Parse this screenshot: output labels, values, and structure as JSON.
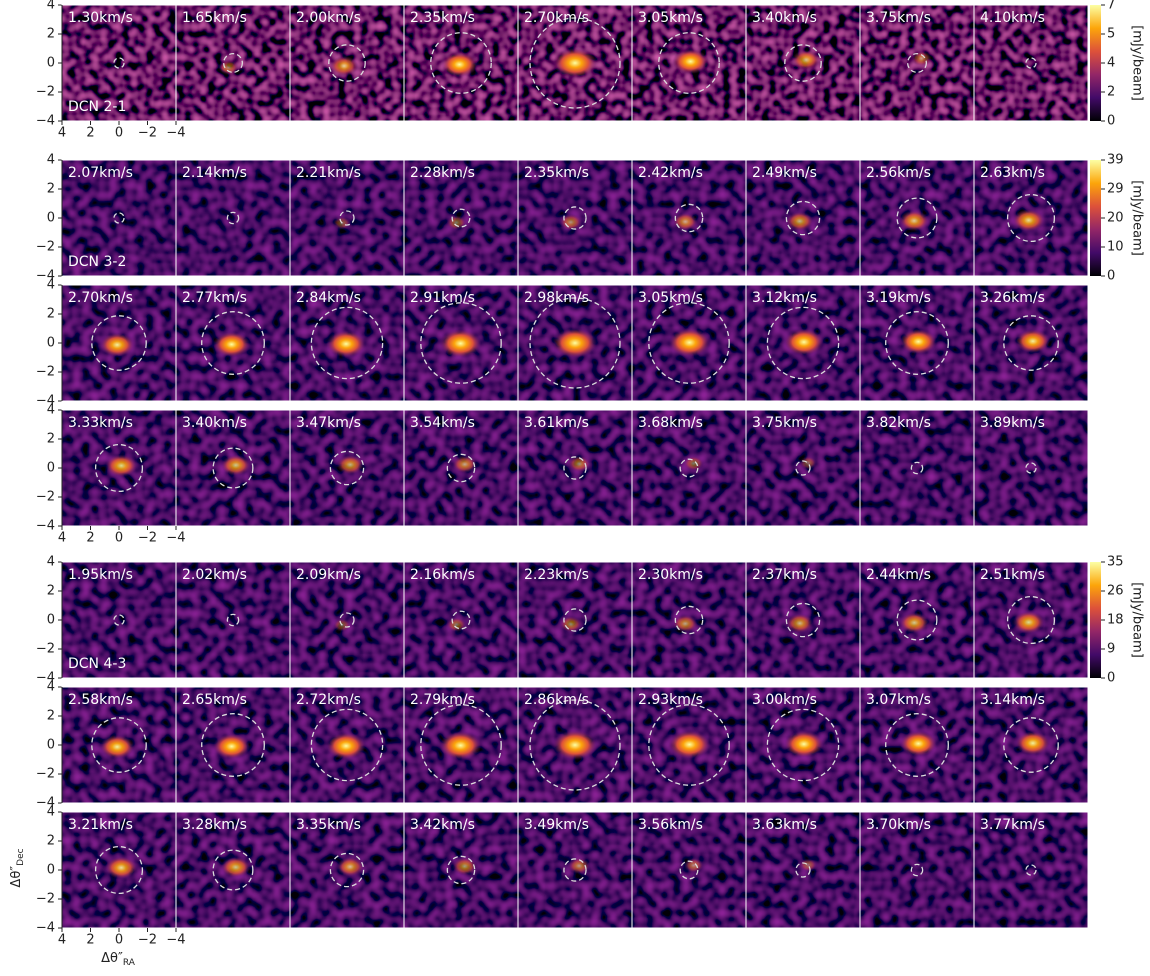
{
  "x_ticks": [
    {
      "value": 4,
      "label": "4"
    },
    {
      "value": 2,
      "label": "2"
    },
    {
      "value": 0,
      "label": "0"
    },
    {
      "value": -2,
      "label": "−2"
    },
    {
      "value": -4,
      "label": "−4"
    }
  ],
  "y_ticks": [
    {
      "value": -4,
      "label": "−4"
    },
    {
      "value": -2,
      "label": "−2"
    },
    {
      "value": 0,
      "label": "0"
    },
    {
      "value": 2,
      "label": "2"
    },
    {
      "value": 4,
      "label": "4"
    }
  ],
  "x_label": {
    "symbol": "Δθ″",
    "subscript": "RA"
  },
  "y_label": {
    "symbol": "Δθ″",
    "subscript": "Dec"
  },
  "groups": [
    {
      "line": "DCN 2-1",
      "colorbar": {
        "label": "[mJy/beam]",
        "lim": [
          0,
          7
        ],
        "ticks": [
          0,
          {
            "value": 1.75,
            "label": "2"
          },
          {
            "value": 3.5,
            "label": "4"
          },
          {
            "value": 5.25,
            "label": "5"
          },
          7
        ]
      },
      "rows": [
        [
          "1.30km/s",
          "1.65km/s",
          "2.00km/s",
          "2.35km/s",
          "2.70km/s",
          "3.05km/s",
          "3.40km/s",
          "3.75km/s",
          "4.10km/s"
        ]
      ]
    },
    {
      "line": "DCN 3-2",
      "colorbar": {
        "label": "[mJy/beam]",
        "lim": [
          0,
          39
        ],
        "ticks": [
          0,
          {
            "value": 9.75,
            "label": "10"
          },
          {
            "value": 19.5,
            "label": "20"
          },
          {
            "value": 29.25,
            "label": "29"
          },
          39
        ]
      },
      "rows": [
        [
          "2.07km/s",
          "2.14km/s",
          "2.21km/s",
          "2.28km/s",
          "2.35km/s",
          "2.42km/s",
          "2.49km/s",
          "2.56km/s",
          "2.63km/s"
        ],
        [
          "2.70km/s",
          "2.77km/s",
          "2.84km/s",
          "2.91km/s",
          "2.98km/s",
          "3.05km/s",
          "3.12km/s",
          "3.19km/s",
          "3.26km/s"
        ],
        [
          "3.33km/s",
          "3.40km/s",
          "3.47km/s",
          "3.54km/s",
          "3.61km/s",
          "3.68km/s",
          "3.75km/s",
          "3.82km/s",
          "3.89km/s"
        ]
      ]
    },
    {
      "line": "DCN 4-3",
      "colorbar": {
        "label": "[mJy/beam]",
        "lim": [
          0,
          35
        ],
        "ticks": [
          0,
          {
            "value": 8.75,
            "label": "9"
          },
          {
            "value": 17.5,
            "label": "18"
          },
          {
            "value": 26.25,
            "label": "26"
          },
          35
        ]
      },
      "rows": [
        [
          "1.95km/s",
          "2.02km/s",
          "2.09km/s",
          "2.16km/s",
          "2.23km/s",
          "2.30km/s",
          "2.37km/s",
          "2.44km/s",
          "2.51km/s"
        ],
        [
          "2.58km/s",
          "2.65km/s",
          "2.72km/s",
          "2.79km/s",
          "2.86km/s",
          "2.93km/s",
          "3.00km/s",
          "3.07km/s",
          "3.14km/s"
        ],
        [
          "3.21km/s",
          "3.28km/s",
          "3.35km/s",
          "3.42km/s",
          "3.49km/s",
          "3.56km/s",
          "3.63km/s",
          "3.70km/s",
          "3.77km/s"
        ]
      ]
    }
  ]
}
